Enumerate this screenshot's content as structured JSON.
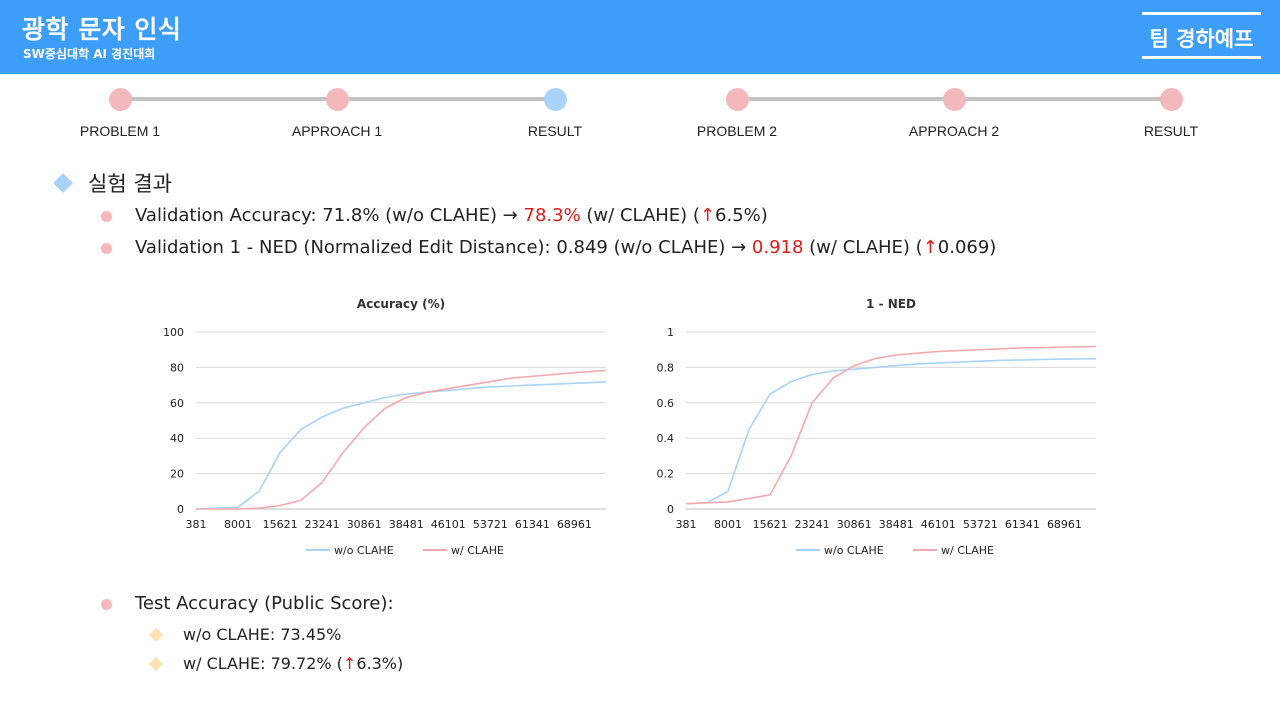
{
  "header": {
    "title": "광학 문자 인식",
    "subtitle": "SW중심대학 AI 경진대회",
    "team": "팀 경하예프"
  },
  "timeline": {
    "steps": [
      {
        "label": "PROBLEM 1",
        "active": false
      },
      {
        "label": "APPROACH 1",
        "active": false
      },
      {
        "label": "RESULT",
        "active": true
      },
      {
        "label": "PROBLEM 2",
        "active": false
      },
      {
        "label": "APPROACH 2",
        "active": false
      },
      {
        "label": "RESULT",
        "active": false
      }
    ]
  },
  "content": {
    "section_title": "실험 결과",
    "val_acc": {
      "prefix": "Validation Accuracy: 71.8% (w/o CLAHE) → ",
      "value": "78.3%",
      "middle": " (w/ CLAHE) (",
      "arrow": "↑",
      "suffix": "6.5%)"
    },
    "val_ned": {
      "prefix": "Validation 1 - NED (Normalized Edit Distance): 0.849 (w/o CLAHE) → ",
      "value": "0.918",
      "middle": " (w/ CLAHE) (",
      "arrow": "↑",
      "suffix": "0.069)"
    },
    "test": {
      "title": "Test Accuracy (Public Score):",
      "without": "w/o CLAHE: 73.45%",
      "with_prefix": "w/ CLAHE: 79.72% (",
      "with_arrow": "↑",
      "with_suffix": "6.3%)"
    }
  },
  "colors": {
    "header_bg": "#3c9ef8",
    "series_wo": "#a9d3f6",
    "series_w": "#f2aaae",
    "highlight_red": "#e01a1a"
  },
  "chart_data": [
    {
      "type": "line",
      "title": "Accuracy (%)",
      "x_tick_labels": [
        "381",
        "8001",
        "15621",
        "23241",
        "30861",
        "38481",
        "46101",
        "53721",
        "61341",
        "68961"
      ],
      "ylim": [
        0,
        100
      ],
      "y_ticks": [
        "0",
        "20",
        "40",
        "60",
        "80",
        "100"
      ],
      "grid": true,
      "legend": "bottom",
      "x": [
        381,
        8001,
        11811,
        15621,
        19431,
        23241,
        27051,
        30861,
        34671,
        38481,
        42291,
        46101,
        49911,
        53721,
        57531,
        61341,
        65151,
        68961,
        74680
      ],
      "series": [
        {
          "name": "w/o CLAHE",
          "values": [
            0,
            1,
            10,
            32,
            45,
            52,
            57,
            60,
            63,
            65,
            66,
            67,
            68,
            69,
            69.5,
            70,
            70.5,
            71,
            71.8
          ]
        },
        {
          "name": "w/ CLAHE",
          "values": [
            0,
            0,
            0.5,
            2,
            5,
            15,
            32,
            46,
            57,
            63,
            66,
            68,
            70,
            72,
            74,
            75,
            76,
            77,
            78.3
          ]
        }
      ]
    },
    {
      "type": "line",
      "title": "1 - NED",
      "x_tick_labels": [
        "381",
        "8001",
        "15621",
        "23241",
        "30861",
        "38481",
        "46101",
        "53721",
        "61341",
        "68961"
      ],
      "ylim": [
        0,
        1
      ],
      "y_ticks": [
        "0",
        "0.2",
        "0.4",
        "0.6",
        "0.8",
        "1"
      ],
      "grid": true,
      "legend": "bottom",
      "x": [
        381,
        4191,
        8001,
        11811,
        15621,
        19431,
        23241,
        27051,
        30861,
        34671,
        38481,
        42291,
        46101,
        49911,
        53721,
        57531,
        61341,
        65151,
        68961,
        74680
      ],
      "series": [
        {
          "name": "w/o CLAHE",
          "values": [
            0.03,
            0.035,
            0.1,
            0.45,
            0.65,
            0.72,
            0.76,
            0.78,
            0.79,
            0.8,
            0.81,
            0.82,
            0.825,
            0.83,
            0.835,
            0.84,
            0.842,
            0.845,
            0.847,
            0.849
          ]
        },
        {
          "name": "w/ CLAHE",
          "values": [
            0.03,
            0.035,
            0.04,
            0.06,
            0.08,
            0.3,
            0.6,
            0.74,
            0.81,
            0.85,
            0.87,
            0.88,
            0.89,
            0.895,
            0.9,
            0.905,
            0.91,
            0.912,
            0.915,
            0.918
          ]
        }
      ]
    }
  ]
}
